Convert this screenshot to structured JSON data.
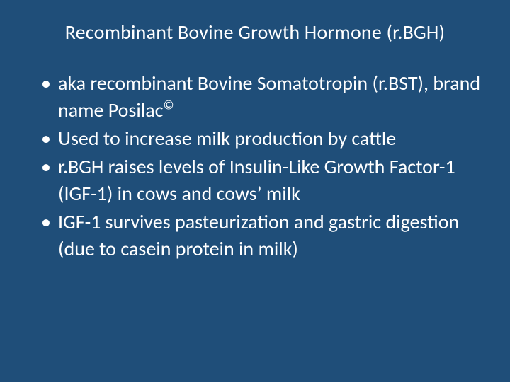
{
  "slide": {
    "background_color": "#1f4e79",
    "text_color": "#ffffff",
    "title_fontsize": 28,
    "body_fontsize": 28,
    "line_height": 38,
    "font_family": "Calibri",
    "title": "Recombinant Bovine Growth Hormone (r.BGH)",
    "bullet_marker": "•",
    "bullets": [
      {
        "text_before": "aka recombinant Bovine Somatotropin (r.BST), brand name Posilac",
        "super": "©",
        "text_after": ""
      },
      {
        "text_before": "Used to increase milk production by cattle",
        "super": "",
        "text_after": ""
      },
      {
        "text_before": "r.BGH raises levels of Insulin-Like Growth Factor-1 (IGF-1) in cows and cows’ milk",
        "super": "",
        "text_after": ""
      },
      {
        "text_before": "IGF-1 survives pasteurization and gastric digestion (due to casein protein in milk)",
        "super": "",
        "text_after": ""
      }
    ]
  }
}
